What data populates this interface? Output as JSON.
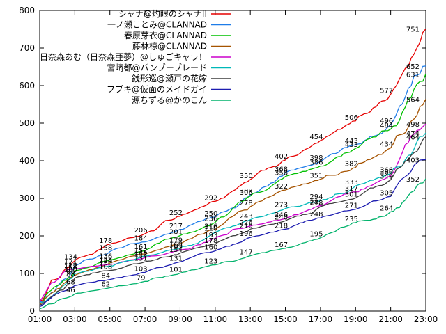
{
  "window": {
    "background": "#ffffff",
    "foreground": "#000000"
  },
  "chart_data": {
    "type": "line",
    "title": "",
    "xlabel": "",
    "ylabel": "",
    "grid": false,
    "legend_position": "top-center-inside",
    "ylim": [
      0,
      800
    ],
    "y_ticks": [
      0,
      100,
      200,
      300,
      400,
      500,
      600,
      700,
      800
    ],
    "x_tick_labels": [
      "01:00",
      "03:00",
      "05:00",
      "07:00",
      "09:00",
      "11:00",
      "13:00",
      "15:00",
      "17:00",
      "19:00",
      "21:00",
      "23:00"
    ],
    "x_hours": [
      1,
      3,
      5,
      7,
      9,
      11,
      13,
      15,
      17,
      19,
      21,
      23
    ],
    "label_from_index": 1,
    "series": [
      {
        "name": "シャナ@灼眼のシャナII",
        "color": "#e60000",
        "values": [
          28,
          134,
          178,
          206,
          252,
          292,
          350,
          402,
          454,
          506,
          577,
          751
        ]
      },
      {
        "name": "一ノ瀬ことみ@CLANNAD",
        "color": "#1e7ce8",
        "values": [
          24,
          121,
          158,
          184,
          217,
          250,
          309,
          368,
          398,
          443,
          496,
          652
        ]
      },
      {
        "name": "春原芽衣@CLANNAD",
        "color": "#00c000",
        "values": [
          20,
          108,
          136,
          161,
          201,
          236,
          306,
          358,
          386,
          433,
          484,
          631
        ]
      },
      {
        "name": "藤林椋@CLANNAD",
        "color": "#a65300",
        "values": [
          18,
          95,
          128,
          152,
          179,
          216,
          278,
          322,
          351,
          382,
          434,
          564
        ]
      },
      {
        "name": "日奈森あむ（日奈森亜夢）@しゅごキャラ！",
        "color": "#cc00cc",
        "values": [
          26,
          112,
          124,
          142,
          163,
          193,
          226,
          246,
          281,
          317,
          360,
          498
        ]
      },
      {
        "name": "宮﨑都@バンブーブレード",
        "color": "#00b8b8",
        "values": [
          22,
          100,
          120,
          146,
          168,
          210,
          243,
          273,
          294,
          333,
          366,
          474
        ]
      },
      {
        "name": "銭形巡@瀬戸の花嫁",
        "color": "#3c3c3c",
        "values": [
          16,
          88,
          108,
          131,
          154,
          178,
          218,
          240,
          278,
          301,
          349,
          464
        ]
      },
      {
        "name": "フブキ@仮面のメイドガイ",
        "color": "#1c1cb0",
        "values": [
          12,
          68,
          84,
          103,
          131,
          160,
          196,
          218,
          248,
          271,
          305,
          403
        ]
      },
      {
        "name": "源ちずる@かのこん",
        "color": "#00b26b",
        "values": [
          6,
          46,
          62,
          79,
          101,
          123,
          147,
          167,
          195,
          235,
          264,
          352
        ]
      }
    ]
  }
}
